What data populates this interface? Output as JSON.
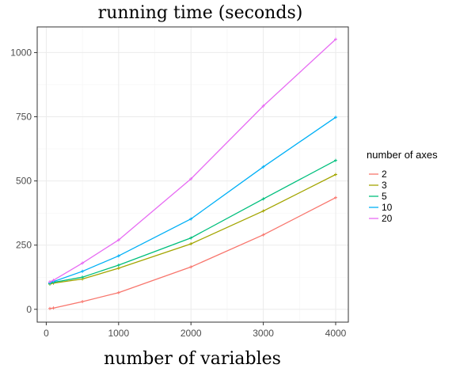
{
  "chart_data": {
    "type": "line",
    "title": "running time (seconds)",
    "xlabel": "number of variables",
    "ylabel": "",
    "xlim": [
      -125,
      4175
    ],
    "ylim": [
      -50,
      1100
    ],
    "x_ticks": [
      0,
      1000,
      2000,
      3000,
      4000
    ],
    "y_ticks": [
      0,
      250,
      500,
      750,
      1000
    ],
    "grid": true,
    "legend": {
      "title": "number of axes",
      "position": "right"
    },
    "x": [
      50,
      100,
      500,
      1000,
      2000,
      3000,
      4000
    ],
    "series": [
      {
        "name": "2",
        "color": "#F8766D",
        "values": [
          3,
          5,
          30,
          65,
          165,
          290,
          435
        ]
      },
      {
        "name": "3",
        "color": "#A3A500",
        "values": [
          98,
          102,
          118,
          160,
          255,
          383,
          525
        ]
      },
      {
        "name": "5",
        "color": "#00BF7D",
        "values": [
          100,
          105,
          125,
          172,
          278,
          430,
          580
        ]
      },
      {
        "name": "10",
        "color": "#00B0F6",
        "values": [
          103,
          108,
          148,
          208,
          352,
          555,
          748
        ]
      },
      {
        "name": "20",
        "color": "#E76BF3",
        "values": [
          107,
          113,
          180,
          270,
          508,
          792,
          1052
        ]
      }
    ]
  }
}
